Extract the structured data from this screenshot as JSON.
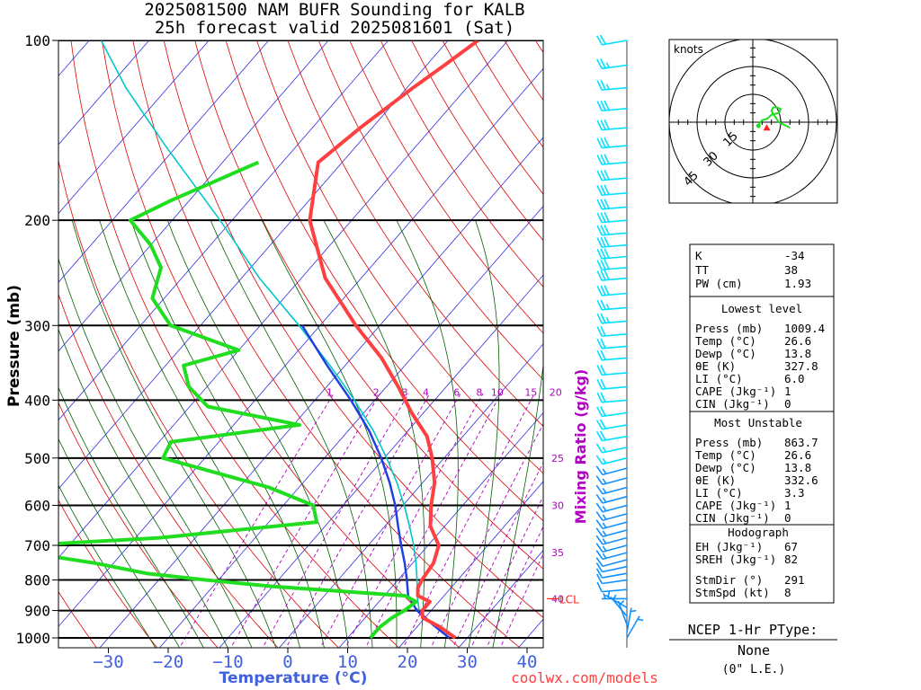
{
  "title_line1": "2025081500 NAM BUFR Sounding for KALB",
  "title_line2": "25h forecast valid 2025081601 (Sat)",
  "ylabel": "Pressure (mb)",
  "xlabel": "Temperature (°C)",
  "mixing_ratio_label": "Mixing Ratio (g/kg)",
  "footer_url": "coolwx.com/models",
  "lcl_label": "LCL",
  "colors": {
    "temperature": "#ff4040",
    "dewpoint": "#20dd20",
    "parcel": "#2040e0",
    "virtual": "#00c8c8",
    "isotherm": "#3030e0",
    "dry_adiabat": "#e00000",
    "moist_adiabat": "#006000",
    "mixing_ratio": "#b000c0",
    "wind_barb_upper": "#00e0ff",
    "wind_barb_lower": "#1090ff",
    "hodograph": "#20dd20",
    "storm_motion": "#ff2020",
    "xtick_label": "#4060e0"
  },
  "chart_data": {
    "type": "skew-t sounding",
    "xlabel": "Temperature (°C)",
    "ylabel": "Pressure (mb)",
    "x_ticks": [
      -30,
      -20,
      -10,
      0,
      10,
      20,
      30,
      40
    ],
    "y_ticks": [
      100,
      200,
      300,
      400,
      500,
      600,
      700,
      800,
      900,
      1000
    ],
    "ylim": [
      1050,
      100
    ],
    "y_scale": "log",
    "mixing_ratio_lines": [
      1,
      2,
      3,
      4,
      6,
      8,
      10,
      15,
      20,
      25,
      30,
      35,
      40
    ],
    "temperature_profile": [
      [
        1000,
        28
      ],
      [
        960,
        24
      ],
      [
        925,
        19.6
      ],
      [
        900,
        18.5
      ],
      [
        870,
        18.5
      ],
      [
        850,
        15.6
      ],
      [
        825,
        14.5
      ],
      [
        800,
        14
      ],
      [
        750,
        13.5
      ],
      [
        700,
        11.8
      ],
      [
        650,
        7.6
      ],
      [
        600,
        4.7
      ],
      [
        550,
        2
      ],
      [
        500,
        -2
      ],
      [
        460,
        -6
      ],
      [
        420,
        -12
      ],
      [
        380,
        -18
      ],
      [
        340,
        -25
      ],
      [
        300,
        -34
      ],
      [
        250,
        -46
      ],
      [
        200,
        -57
      ],
      [
        160,
        -64
      ],
      [
        140,
        -62
      ],
      [
        120,
        -59
      ],
      [
        110,
        -57
      ],
      [
        100,
        -55
      ]
    ],
    "dewpoint_profile": [
      [
        1000,
        13.8
      ],
      [
        960,
        13.8
      ],
      [
        925,
        14.5
      ],
      [
        900,
        15.5
      ],
      [
        870,
        16.2
      ],
      [
        850,
        13.5
      ],
      [
        820,
        -10
      ],
      [
        800,
        -22
      ],
      [
        780,
        -33
      ],
      [
        750,
        -43
      ],
      [
        720,
        -56
      ],
      [
        700,
        -57
      ],
      [
        680,
        -36
      ],
      [
        640,
        -12
      ],
      [
        600,
        -15
      ],
      [
        560,
        -25
      ],
      [
        500,
        -47
      ],
      [
        470,
        -48
      ],
      [
        440,
        -29
      ],
      [
        410,
        -47
      ],
      [
        380,
        -53
      ],
      [
        350,
        -57
      ],
      [
        330,
        -50
      ],
      [
        300,
        -65
      ],
      [
        270,
        -72
      ],
      [
        240,
        -75
      ],
      [
        220,
        -80
      ],
      [
        200,
        -87
      ],
      [
        185,
        -83
      ],
      [
        160,
        -74
      ]
    ],
    "parcel_profile": [
      [
        1000,
        27
      ],
      [
        950,
        22.3
      ],
      [
        900,
        17.6
      ],
      [
        850,
        14
      ],
      [
        800,
        11.5
      ],
      [
        750,
        8.7
      ],
      [
        700,
        5.5
      ],
      [
        650,
        2.2
      ],
      [
        600,
        -1.3
      ],
      [
        550,
        -5.5
      ],
      [
        500,
        -10.5
      ],
      [
        450,
        -16.5
      ],
      [
        400,
        -24
      ],
      [
        350,
        -33
      ],
      [
        300,
        -43
      ]
    ],
    "virtual_temperature_profile": [
      [
        900,
        18
      ],
      [
        850,
        15.5
      ],
      [
        800,
        13.2
      ],
      [
        750,
        10.6
      ],
      [
        700,
        7.6
      ],
      [
        650,
        4.1
      ],
      [
        600,
        0.2
      ],
      [
        550,
        -4.3
      ],
      [
        500,
        -9.6
      ],
      [
        450,
        -15.8
      ],
      [
        400,
        -23.4
      ],
      [
        350,
        -32.5
      ],
      [
        300,
        -43.5
      ],
      [
        250,
        -57
      ],
      [
        200,
        -72
      ],
      [
        150,
        -92
      ],
      [
        120,
        -107
      ],
      [
        100,
        -118
      ]
    ],
    "lcl_pressure": 860,
    "wind_barbs": [
      {
        "p": 100,
        "dir": 260,
        "spd": 22
      },
      {
        "p": 110,
        "dir": 262,
        "spd": 23
      },
      {
        "p": 120,
        "dir": 265,
        "spd": 25
      },
      {
        "p": 130,
        "dir": 265,
        "spd": 28
      },
      {
        "p": 140,
        "dir": 265,
        "spd": 30
      },
      {
        "p": 150,
        "dir": 265,
        "spd": 30
      },
      {
        "p": 160,
        "dir": 265,
        "spd": 30
      },
      {
        "p": 170,
        "dir": 265,
        "spd": 32
      },
      {
        "p": 180,
        "dir": 265,
        "spd": 32
      },
      {
        "p": 190,
        "dir": 265,
        "spd": 32
      },
      {
        "p": 200,
        "dir": 265,
        "spd": 30
      },
      {
        "p": 210,
        "dir": 265,
        "spd": 30
      },
      {
        "p": 220,
        "dir": 265,
        "spd": 32
      },
      {
        "p": 230,
        "dir": 265,
        "spd": 32
      },
      {
        "p": 240,
        "dir": 265,
        "spd": 30
      },
      {
        "p": 250,
        "dir": 265,
        "spd": 30
      },
      {
        "p": 265,
        "dir": 265,
        "spd": 28
      },
      {
        "p": 280,
        "dir": 265,
        "spd": 25
      },
      {
        "p": 295,
        "dir": 265,
        "spd": 25
      },
      {
        "p": 310,
        "dir": 265,
        "spd": 22
      },
      {
        "p": 325,
        "dir": 265,
        "spd": 20
      },
      {
        "p": 340,
        "dir": 265,
        "spd": 20
      },
      {
        "p": 360,
        "dir": 265,
        "spd": 20
      },
      {
        "p": 380,
        "dir": 265,
        "spd": 20
      },
      {
        "p": 400,
        "dir": 265,
        "spd": 20
      },
      {
        "p": 420,
        "dir": 262,
        "spd": 20
      },
      {
        "p": 440,
        "dir": 260,
        "spd": 20
      },
      {
        "p": 460,
        "dir": 260,
        "spd": 18
      },
      {
        "p": 480,
        "dir": 258,
        "spd": 17
      },
      {
        "p": 500,
        "dir": 256,
        "spd": 16
      },
      {
        "p": 520,
        "dir": 255,
        "spd": 15
      },
      {
        "p": 540,
        "dir": 255,
        "spd": 15
      },
      {
        "p": 560,
        "dir": 255,
        "spd": 15
      },
      {
        "p": 580,
        "dir": 255,
        "spd": 15
      },
      {
        "p": 600,
        "dir": 255,
        "spd": 15
      },
      {
        "p": 620,
        "dir": 255,
        "spd": 15
      },
      {
        "p": 640,
        "dir": 255,
        "spd": 15
      },
      {
        "p": 660,
        "dir": 255,
        "spd": 14
      },
      {
        "p": 680,
        "dir": 255,
        "spd": 14
      },
      {
        "p": 700,
        "dir": 255,
        "spd": 13
      },
      {
        "p": 720,
        "dir": 255,
        "spd": 13
      },
      {
        "p": 740,
        "dir": 255,
        "spd": 12
      },
      {
        "p": 760,
        "dir": 258,
        "spd": 12
      },
      {
        "p": 780,
        "dir": 260,
        "spd": 12
      },
      {
        "p": 800,
        "dir": 262,
        "spd": 10
      },
      {
        "p": 830,
        "dir": 265,
        "spd": 8
      },
      {
        "p": 860,
        "dir": 270,
        "spd": 7
      },
      {
        "p": 890,
        "dir": 300,
        "spd": 6
      },
      {
        "p": 920,
        "dir": 320,
        "spd": 6
      },
      {
        "p": 950,
        "dir": 340,
        "spd": 5
      },
      {
        "p": 980,
        "dir": 10,
        "spd": 5
      },
      {
        "p": 1000,
        "dir": 30,
        "spd": 5
      }
    ]
  },
  "hodograph": {
    "units_label": "knots",
    "ring_labels": [
      "15",
      "30",
      "45"
    ],
    "rings_kt": [
      15,
      30,
      45
    ],
    "trace_uv": [
      [
        3,
        -2
      ],
      [
        4,
        0
      ],
      [
        5,
        1
      ],
      [
        8,
        2
      ],
      [
        10,
        4
      ],
      [
        14,
        5
      ],
      [
        15,
        7
      ],
      [
        13,
        8
      ],
      [
        11,
        8
      ],
      [
        10,
        6
      ],
      [
        12,
        3
      ],
      [
        14,
        0
      ],
      [
        16,
        -1
      ],
      [
        18,
        -2
      ],
      [
        20,
        -3
      ]
    ],
    "storm_motion_uv": [
      7.5,
      -3
    ]
  },
  "indices": {
    "k_label": "K",
    "k_value": "-34",
    "tt_label": "TT",
    "tt_value": "38",
    "pw_label": "PW (cm)",
    "pw_value": "1.93"
  },
  "lowest_level": {
    "heading": "Lowest level",
    "rows": [
      {
        "label": "Press (mb)",
        "value": "1009.4"
      },
      {
        "label": "Temp (°C)",
        "value": "26.6"
      },
      {
        "label": "Dewp (°C)",
        "value": "13.8"
      },
      {
        "label": "θE (K)",
        "value": "327.8"
      },
      {
        "label": "LI (°C)",
        "value": "6.0"
      },
      {
        "label": "CAPE (Jkg⁻¹)",
        "value": "1"
      },
      {
        "label": "CIN (Jkg⁻¹)",
        "value": "0"
      }
    ]
  },
  "most_unstable": {
    "heading": "Most Unstable",
    "rows": [
      {
        "label": "Press (mb)",
        "value": "863.7"
      },
      {
        "label": "Temp (°C)",
        "value": "26.6"
      },
      {
        "label": "Dewp (°C)",
        "value": "13.8"
      },
      {
        "label": "θE (K)",
        "value": "332.6"
      },
      {
        "label": "LI (°C)",
        "value": "3.3"
      },
      {
        "label": "CAPE (Jkg⁻¹)",
        "value": "1"
      },
      {
        "label": "CIN (Jkg⁻¹)",
        "value": "0"
      }
    ]
  },
  "hodograph_params": {
    "heading": "Hodograph",
    "rows": [
      {
        "label": "EH (Jkg⁻¹)",
        "value": "67"
      },
      {
        "label": "SREH (Jkg⁻¹)",
        "value": "82"
      },
      {
        "label": "StmDir (°)",
        "value": "291"
      },
      {
        "label": "StmSpd (kt)",
        "value": "8"
      }
    ]
  },
  "ptype": {
    "heading": "NCEP 1-Hr PType:",
    "value": "None",
    "accum": "(0\" L.E.)"
  }
}
